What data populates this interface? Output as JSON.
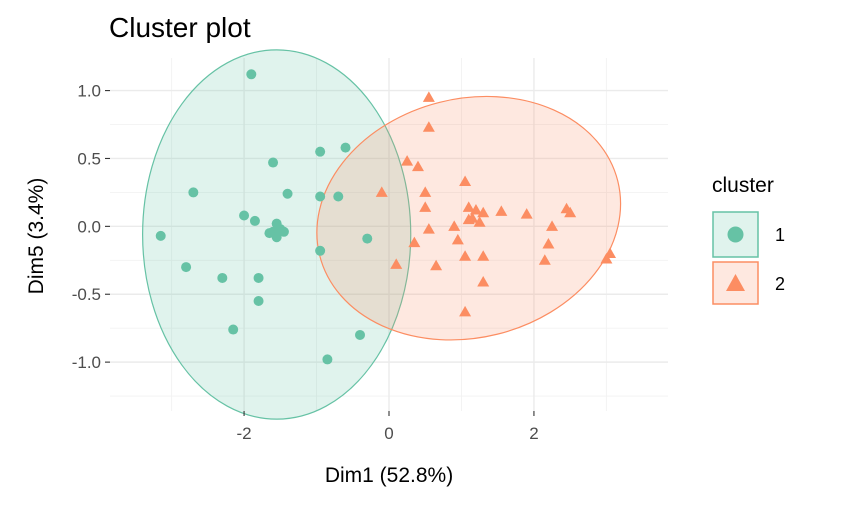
{
  "chart_data": {
    "type": "scatter",
    "title": "Cluster plot",
    "xlabel": "Dim1 (52.8%)",
    "ylabel": "Dim5 (3.4%)",
    "xlim": [
      -3.85,
      3.85
    ],
    "ylim": [
      -1.36,
      1.24
    ],
    "x_ticks": [
      -2,
      0,
      2
    ],
    "x_tick_labels": [
      "-2",
      "0",
      "2"
    ],
    "y_ticks": [
      -1.0,
      -0.5,
      0.0,
      0.5,
      1.0
    ],
    "y_tick_labels": [
      "-1.0",
      "-0.5",
      "0.0",
      "0.5",
      "1.0"
    ],
    "grid": true,
    "legend": {
      "title": "cluster",
      "position": "right"
    },
    "series": [
      {
        "name": "1",
        "marker": "circle",
        "color": "#66C2A5",
        "ellipse": {
          "center": [
            -1.55,
            -0.06
          ],
          "rx": 1.85,
          "ry": 1.36
        },
        "points": [
          [
            -1.9,
            1.12
          ],
          [
            -1.6,
            0.47
          ],
          [
            -2.7,
            0.25
          ],
          [
            -1.4,
            0.24
          ],
          [
            -3.15,
            -0.07
          ],
          [
            -2.0,
            0.08
          ],
          [
            -1.85,
            0.04
          ],
          [
            -1.55,
            0.02
          ],
          [
            -1.5,
            -0.02
          ],
          [
            -1.6,
            -0.04
          ],
          [
            -1.45,
            -0.04
          ],
          [
            -1.55,
            -0.08
          ],
          [
            -1.65,
            -0.05
          ],
          [
            -2.8,
            -0.3
          ],
          [
            -2.3,
            -0.38
          ],
          [
            -1.8,
            -0.38
          ],
          [
            -1.8,
            -0.55
          ],
          [
            -2.15,
            -0.76
          ],
          [
            -0.95,
            0.55
          ],
          [
            -0.6,
            0.58
          ],
          [
            -0.95,
            0.22
          ],
          [
            -0.7,
            0.22
          ],
          [
            -0.95,
            -0.18
          ],
          [
            -0.3,
            -0.09
          ],
          [
            -0.4,
            -0.8
          ],
          [
            -0.85,
            -0.98
          ]
        ]
      },
      {
        "name": "2",
        "marker": "triangle",
        "color": "#FC8D62",
        "ellipse": {
          "center": [
            1.1,
            0.06
          ],
          "rx": 2.12,
          "ry": 0.88,
          "angle": -14
        },
        "points": [
          [
            0.55,
            0.95
          ],
          [
            0.55,
            0.73
          ],
          [
            0.25,
            0.48
          ],
          [
            0.4,
            0.44
          ],
          [
            0.5,
            0.25
          ],
          [
            -0.1,
            0.25
          ],
          [
            0.5,
            0.14
          ],
          [
            1.05,
            0.33
          ],
          [
            1.1,
            0.14
          ],
          [
            1.2,
            0.12
          ],
          [
            1.3,
            0.1
          ],
          [
            1.15,
            0.06
          ],
          [
            1.25,
            0.03
          ],
          [
            1.1,
            0.05
          ],
          [
            1.55,
            0.11
          ],
          [
            1.9,
            0.09
          ],
          [
            2.45,
            0.13
          ],
          [
            2.5,
            0.1
          ],
          [
            0.9,
            0.0
          ],
          [
            0.95,
            -0.1
          ],
          [
            0.55,
            -0.02
          ],
          [
            2.25,
            0.0
          ],
          [
            2.2,
            -0.13
          ],
          [
            0.35,
            -0.12
          ],
          [
            1.05,
            -0.22
          ],
          [
            1.3,
            -0.22
          ],
          [
            0.1,
            -0.28
          ],
          [
            0.65,
            -0.29
          ],
          [
            2.15,
            -0.25
          ],
          [
            3.05,
            -0.2
          ],
          [
            3.0,
            -0.24
          ],
          [
            1.3,
            -0.41
          ],
          [
            1.05,
            -0.63
          ]
        ]
      }
    ]
  }
}
